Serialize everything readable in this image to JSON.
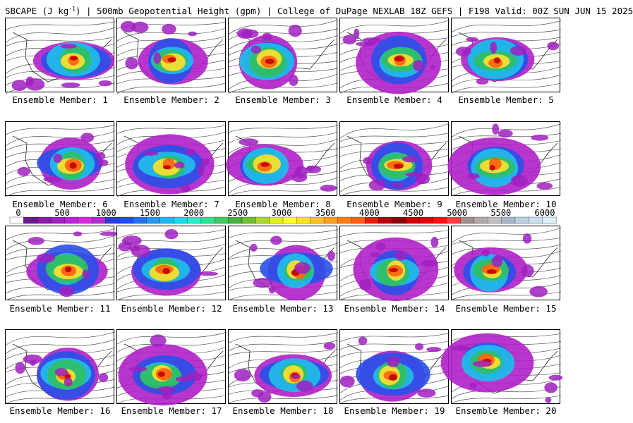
{
  "header": {
    "title_html_parts": [
      "SBCAPE (J kg",
      "-1",
      ") | 500mb Geopotential Height (gpm) | College of DuPage NEXLAB 18Z GEFS | F198 Valid: 00Z SUN JUN 15 2025"
    ]
  },
  "colorbar": {
    "ticks": [
      "0",
      "500",
      "1000",
      "1500",
      "2000",
      "2500",
      "3000",
      "3500",
      "4000",
      "4500",
      "5000",
      "5500",
      "6000"
    ],
    "colors": [
      "#ffffff",
      "#6a1a8c",
      "#8a1aa8",
      "#a020c0",
      "#c020d8",
      "#d828e0",
      "#b42cd0",
      "#2a3cd8",
      "#2050ec",
      "#2070f0",
      "#2098f0",
      "#20b8f0",
      "#20d8e8",
      "#30e8c8",
      "#30e090",
      "#40c860",
      "#48b040",
      "#70c030",
      "#a8d830",
      "#e0f028",
      "#ffff30",
      "#ffe030",
      "#ffc030",
      "#ffa020",
      "#ff8010",
      "#ff6010",
      "#e02008",
      "#b00808",
      "#8a0404",
      "#c80000",
      "#e00000",
      "#ff1010",
      "#ff4040",
      "#a09090",
      "#b0a8a8",
      "#c0c0c0",
      "#a8b8c8",
      "#b8d0e0",
      "#c8e0f0",
      "#ddeef8"
    ],
    "color_meaning": "SBCAPE shading scale"
  },
  "panels": [
    {
      "label": "Ensemble Member: 1"
    },
    {
      "label": "Ensemble Member: 2"
    },
    {
      "label": "Ensemble Member: 3"
    },
    {
      "label": "Ensemble Member: 4"
    },
    {
      "label": "Ensemble Member: 5"
    },
    {
      "label": "Ensemble Member: 6"
    },
    {
      "label": "Ensemble Member: 7"
    },
    {
      "label": "Ensemble Member: 8"
    },
    {
      "label": "Ensemble Member: 9"
    },
    {
      "label": "Ensemble Member: 10"
    },
    {
      "label": "Ensemble Member: 11"
    },
    {
      "label": "Ensemble Member: 12"
    },
    {
      "label": "Ensemble Member: 13"
    },
    {
      "label": "Ensemble Member: 14"
    },
    {
      "label": "Ensemble Member: 15"
    },
    {
      "label": "Ensemble Member: 16"
    },
    {
      "label": "Ensemble Member: 17"
    },
    {
      "label": "Ensemble Member: 18"
    },
    {
      "label": "Ensemble Member: 19"
    },
    {
      "label": "Ensemble Member: 20"
    }
  ]
}
